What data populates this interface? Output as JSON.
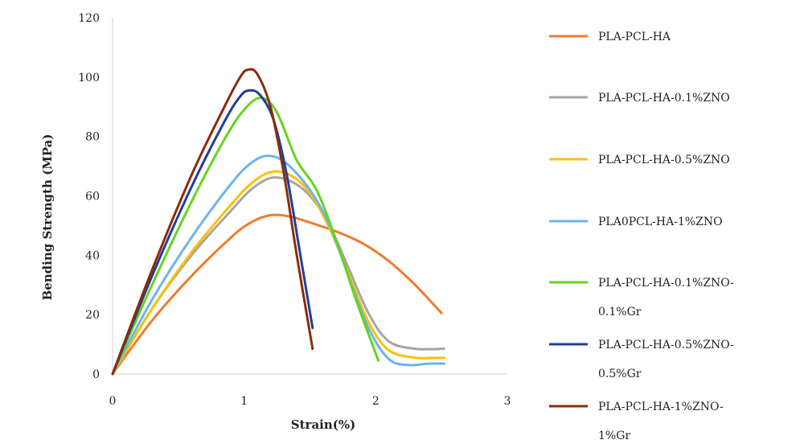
{
  "chart_data": {
    "type": "line",
    "title": "",
    "xlabel": "Strain(%)",
    "ylabel": "Bending  Strength  (MPa)",
    "xlim": [
      0,
      3
    ],
    "ylim": [
      0,
      120
    ],
    "x_ticks": [
      "0",
      "1",
      "2",
      "3"
    ],
    "y_ticks": [
      "0",
      "20",
      "40",
      "60",
      "80",
      "100",
      "120"
    ],
    "grid": false,
    "legend_position": "right",
    "series": [
      {
        "name": "PLA-PCL-HA",
        "name_lines": [
          "PLA-PCL-HA"
        ],
        "color": "#ED7D31",
        "points": [
          [
            0,
            0
          ],
          [
            0.3,
            18
          ],
          [
            0.6,
            33
          ],
          [
            0.9,
            46
          ],
          [
            1.05,
            51
          ],
          [
            1.2,
            53.5
          ],
          [
            1.35,
            53
          ],
          [
            1.5,
            51
          ],
          [
            1.7,
            48
          ],
          [
            1.9,
            44
          ],
          [
            2.1,
            38
          ],
          [
            2.3,
            30
          ],
          [
            2.5,
            20.5
          ]
        ]
      },
      {
        "name": "PLA-PCL-HA-0.1%ZNO",
        "name_lines": [
          "PLA-PCL-HA-0.1%ZNO"
        ],
        "color": "#A5A5A5",
        "points": [
          [
            0,
            0
          ],
          [
            0.3,
            22
          ],
          [
            0.6,
            40
          ],
          [
            0.9,
            55
          ],
          [
            1.05,
            62
          ],
          [
            1.2,
            66
          ],
          [
            1.35,
            65
          ],
          [
            1.5,
            60
          ],
          [
            1.65,
            50
          ],
          [
            1.8,
            35
          ],
          [
            1.95,
            20
          ],
          [
            2.1,
            11
          ],
          [
            2.3,
            8.5
          ],
          [
            2.52,
            8.5
          ]
        ]
      },
      {
        "name": "PLA-PCL-HA-0.5%ZNO",
        "name_lines": [
          "PLA-PCL-HA-0.5%ZNO"
        ],
        "color": "#FFC000",
        "points": [
          [
            0,
            0
          ],
          [
            0.3,
            22
          ],
          [
            0.6,
            41
          ],
          [
            0.9,
            57
          ],
          [
            1.05,
            64
          ],
          [
            1.2,
            68
          ],
          [
            1.35,
            67
          ],
          [
            1.5,
            61
          ],
          [
            1.65,
            49
          ],
          [
            1.8,
            33
          ],
          [
            1.95,
            17
          ],
          [
            2.1,
            8
          ],
          [
            2.3,
            5.5
          ],
          [
            2.52,
            5.5
          ]
        ]
      },
      {
        "name": "PLA0PCL-HA-1%ZNO",
        "name_lines": [
          "PLA0PCL-HA-1%ZNO"
        ],
        "color": "#6CB4EE",
        "points": [
          [
            0,
            0
          ],
          [
            0.3,
            25
          ],
          [
            0.6,
            46
          ],
          [
            0.9,
            64
          ],
          [
            1.05,
            71
          ],
          [
            1.18,
            73.5
          ],
          [
            1.32,
            71
          ],
          [
            1.5,
            62
          ],
          [
            1.65,
            50
          ],
          [
            1.8,
            32
          ],
          [
            1.95,
            15
          ],
          [
            2.1,
            5
          ],
          [
            2.25,
            3
          ],
          [
            2.4,
            3.5
          ],
          [
            2.52,
            3.5
          ]
        ]
      },
      {
        "name": "PLA-PCL-HA-0.1%ZNO-0.1%Gr",
        "name_lines": [
          "PLA-PCL-HA-0.1%ZNO-",
          "0.1%Gr"
        ],
        "color": "#66D41E",
        "points": [
          [
            0,
            0
          ],
          [
            0.3,
            30
          ],
          [
            0.6,
            58
          ],
          [
            0.85,
            79
          ],
          [
            1.0,
            89
          ],
          [
            1.13,
            93
          ],
          [
            1.25,
            88
          ],
          [
            1.4,
            72
          ],
          [
            1.55,
            62
          ],
          [
            1.7,
            45
          ],
          [
            1.85,
            25
          ],
          [
            2.02,
            4.5
          ]
        ]
      },
      {
        "name": "PLA-PCL-HA-0.5%ZNO-0.5%Gr",
        "name_lines": [
          "PLA-PCL-HA-0.5%ZNO-",
          "0.5%Gr"
        ],
        "color": "#1F3F9A",
        "points": [
          [
            0,
            0
          ],
          [
            0.3,
            33
          ],
          [
            0.6,
            63
          ],
          [
            0.85,
            85
          ],
          [
            0.97,
            93.5
          ],
          [
            1.04,
            95.5
          ],
          [
            1.12,
            94
          ],
          [
            1.22,
            86
          ],
          [
            1.32,
            68
          ],
          [
            1.42,
            42
          ],
          [
            1.52,
            15.5
          ]
        ]
      },
      {
        "name": "PLA-PCL-HA-1%ZNO-1%Gr",
        "name_lines": [
          "PLA-PCL-HA-1%ZNO-",
          "1%Gr"
        ],
        "color": "#8B2C0A",
        "points": [
          [
            0,
            0
          ],
          [
            0.3,
            35
          ],
          [
            0.6,
            67
          ],
          [
            0.85,
            90
          ],
          [
            0.97,
            100
          ],
          [
            1.03,
            102.5
          ],
          [
            1.1,
            101
          ],
          [
            1.2,
            90
          ],
          [
            1.3,
            68
          ],
          [
            1.4,
            40
          ],
          [
            1.52,
            8.5
          ]
        ]
      }
    ]
  }
}
